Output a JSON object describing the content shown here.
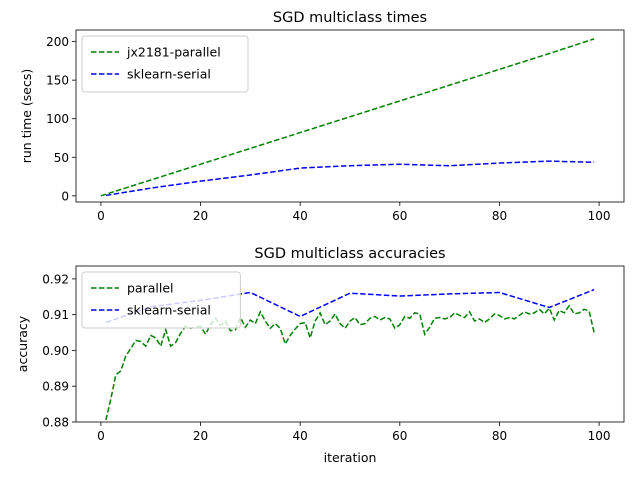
{
  "chart_data": [
    {
      "type": "line",
      "title": "SGD multiclass times",
      "xlabel": "",
      "ylabel": "run time (secs)",
      "xlim": [
        -5,
        105
      ],
      "ylim": [
        -8,
        215
      ],
      "xticks": [
        0,
        20,
        40,
        60,
        80,
        100
      ],
      "yticks": [
        0,
        50,
        100,
        150,
        200
      ],
      "grid": false,
      "legend": "upper-left",
      "series": [
        {
          "name": "jx2181-parallel",
          "color": "#008000",
          "dash": "dashed",
          "x": [
            0,
            10,
            20,
            30,
            40,
            50,
            60,
            70,
            80,
            90,
            99
          ],
          "y": [
            0,
            20.5,
            41,
            61.5,
            82,
            102.5,
            123,
            143.5,
            164,
            184.5,
            203.5
          ]
        },
        {
          "name": "sklearn-serial",
          "color": "#0000ff",
          "dash": "dashed",
          "x": [
            1,
            10,
            20,
            30,
            40,
            50,
            60,
            70,
            80,
            90,
            99
          ],
          "y": [
            0.5,
            10,
            19,
            27,
            36,
            39,
            41,
            39,
            42.5,
            45,
            43.5
          ]
        }
      ]
    },
    {
      "type": "line",
      "title": "SGD multiclass accuracies",
      "xlabel": "iteration",
      "ylabel": "accuracy",
      "xlim": [
        -5,
        105
      ],
      "ylim": [
        0.88,
        0.9236
      ],
      "xticks": [
        0,
        20,
        40,
        60,
        80,
        100
      ],
      "yticks": [
        0.88,
        0.89,
        0.9,
        0.91,
        0.92
      ],
      "grid": false,
      "legend": "upper-left",
      "series": [
        {
          "name": "parallel",
          "color": "#008000",
          "dash": "dashed",
          "x": [
            1,
            2,
            3,
            4,
            5,
            6,
            7,
            8,
            9,
            10,
            11,
            12,
            13,
            14,
            15,
            16,
            17,
            18,
            19,
            20,
            21,
            22,
            23,
            24,
            25,
            26,
            27,
            28,
            29,
            30,
            31,
            32,
            33,
            34,
            35,
            36,
            37,
            38,
            39,
            40,
            41,
            42,
            43,
            44,
            45,
            46,
            47,
            48,
            49,
            50,
            51,
            52,
            53,
            54,
            55,
            56,
            57,
            58,
            59,
            60,
            61,
            62,
            63,
            64,
            65,
            66,
            67,
            68,
            69,
            70,
            71,
            72,
            73,
            74,
            75,
            76,
            77,
            78,
            79,
            80,
            81,
            82,
            83,
            84,
            85,
            86,
            87,
            88,
            89,
            90,
            91,
            92,
            93,
            94,
            95,
            96,
            97,
            98,
            99
          ],
          "y": [
            0.8805,
            0.8865,
            0.8932,
            0.8943,
            0.8985,
            0.9005,
            0.9028,
            0.9025,
            0.9012,
            0.9042,
            0.9035,
            0.9012,
            0.9058,
            0.9012,
            0.9022,
            0.9048,
            0.9068,
            0.9062,
            0.9065,
            0.9068,
            0.9045,
            0.9072,
            0.909,
            0.907,
            0.9082,
            0.9055,
            0.9058,
            0.9092,
            0.9065,
            0.9085,
            0.9075,
            0.9108,
            0.9082,
            0.9062,
            0.9075,
            0.9062,
            0.9018,
            0.9042,
            0.906,
            0.9075,
            0.9078,
            0.9035,
            0.9082,
            0.9105,
            0.9072,
            0.9082,
            0.9102,
            0.9075,
            0.9062,
            0.9082,
            0.9092,
            0.9072,
            0.9075,
            0.909,
            0.9095,
            0.9085,
            0.9092,
            0.9088,
            0.9062,
            0.9072,
            0.9095,
            0.909,
            0.9105,
            0.9102,
            0.9045,
            0.9065,
            0.909,
            0.9092,
            0.9088,
            0.9092,
            0.9105,
            0.9098,
            0.9092,
            0.9108,
            0.9082,
            0.9088,
            0.9078,
            0.9088,
            0.9102,
            0.9098,
            0.9088,
            0.9092,
            0.9088,
            0.9098,
            0.9108,
            0.9102,
            0.9105,
            0.9115,
            0.9102,
            0.9118,
            0.9085,
            0.9112,
            0.9105,
            0.9125,
            0.9102,
            0.9105,
            0.9115,
            0.911,
            0.905
          ]
        },
        {
          "name": "sklearn-serial",
          "color": "#0000ff",
          "dash": "dashed",
          "x": [
            1,
            10,
            20,
            30,
            40,
            50,
            60,
            70,
            80,
            90,
            99
          ],
          "y": [
            0.9078,
            0.9122,
            0.914,
            0.9162,
            0.9095,
            0.916,
            0.9152,
            0.9158,
            0.9162,
            0.912,
            0.917
          ]
        }
      ]
    }
  ]
}
